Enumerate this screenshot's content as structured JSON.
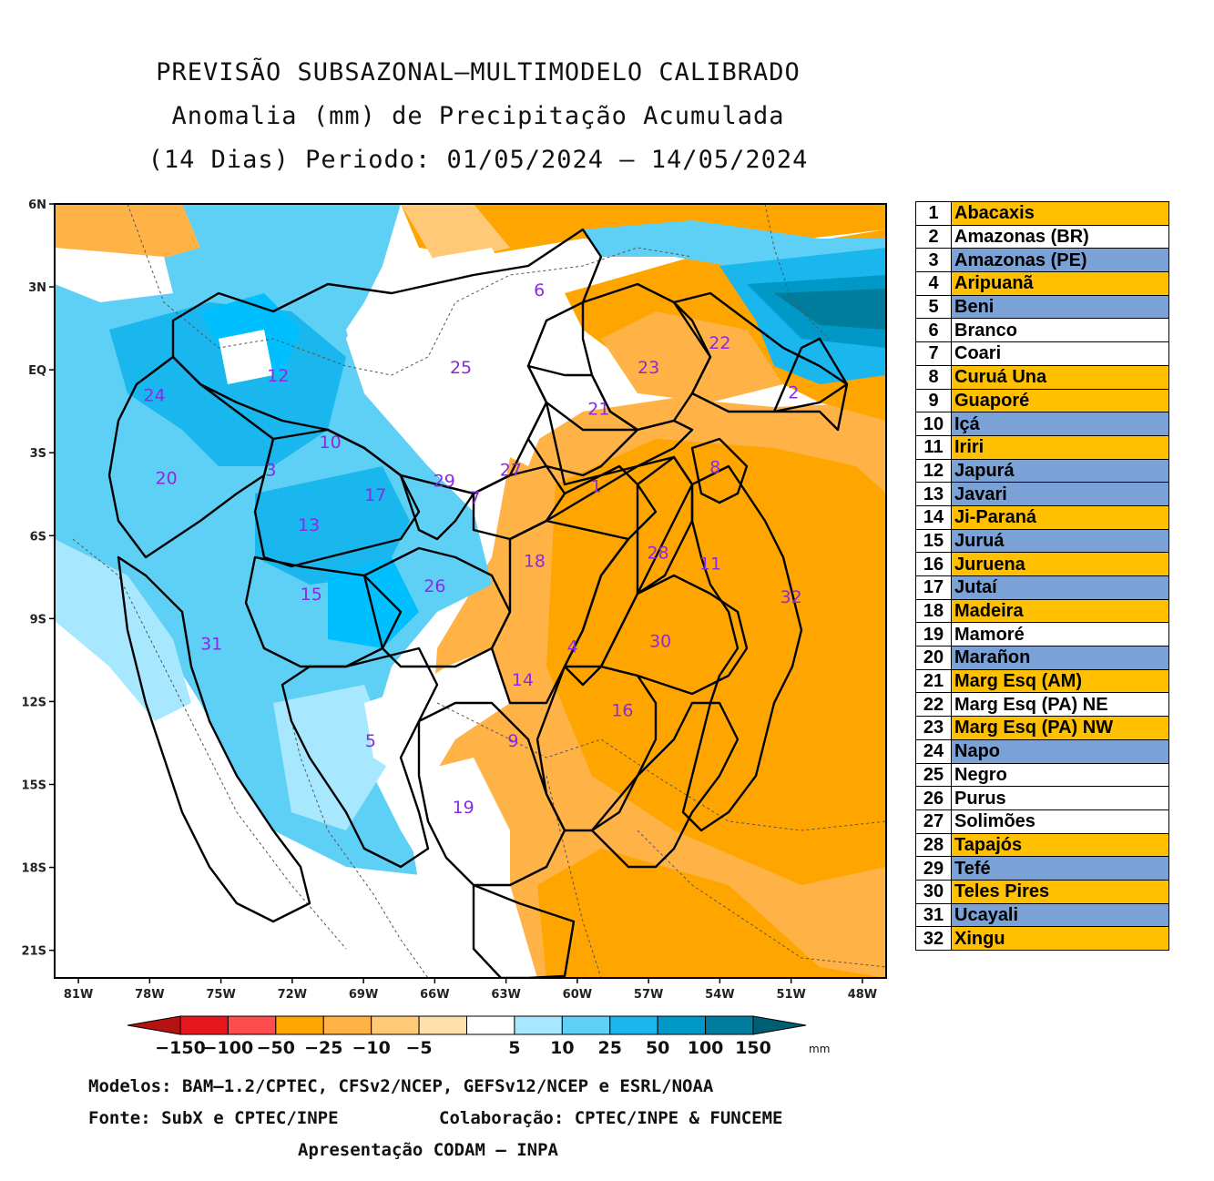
{
  "title": {
    "line1": "PREVISÃO SUBSAZONAL—MULTIMODELO CALIBRADO",
    "line2": "Anomalia (mm) de Precipitação Acumulada",
    "line3": "(14 Dias) Periodo: 01/05/2024 — 14/05/2024"
  },
  "map": {
    "lat_ticks": [
      "6N",
      "3N",
      "EQ",
      "3S",
      "6S",
      "9S",
      "12S",
      "15S",
      "18S",
      "21S"
    ],
    "lon_ticks": [
      "81W",
      "78W",
      "75W",
      "72W",
      "69W",
      "66W",
      "63W",
      "60W",
      "57W",
      "54W",
      "51W",
      "48W"
    ],
    "lat_range": [
      6,
      -22
    ],
    "lon_range": [
      -82,
      -47
    ],
    "basin_labels": [
      {
        "n": "1",
        "lon": -59.2,
        "lat": -4.2
      },
      {
        "n": "2",
        "lon": -50.9,
        "lat": -0.8
      },
      {
        "n": "3",
        "lon": -72.9,
        "lat": -3.6
      },
      {
        "n": "4",
        "lon": -60.2,
        "lat": -10.0
      },
      {
        "n": "5",
        "lon": -68.7,
        "lat": -13.4
      },
      {
        "n": "6",
        "lon": -61.6,
        "lat": 2.9
      },
      {
        "n": "7",
        "lon": -64.3,
        "lat": -4.6
      },
      {
        "n": "8",
        "lon": -54.2,
        "lat": -3.5
      },
      {
        "n": "9",
        "lon": -62.7,
        "lat": -13.4
      },
      {
        "n": "10",
        "lon": -70.4,
        "lat": -2.6
      },
      {
        "n": "11",
        "lon": -54.4,
        "lat": -7.0
      },
      {
        "n": "12",
        "lon": -72.6,
        "lat": -0.2
      },
      {
        "n": "13",
        "lon": -71.3,
        "lat": -5.6
      },
      {
        "n": "14",
        "lon": -62.3,
        "lat": -11.2
      },
      {
        "n": "15",
        "lon": -71.2,
        "lat": -8.1
      },
      {
        "n": "16",
        "lon": -58.1,
        "lat": -12.3
      },
      {
        "n": "17",
        "lon": -68.5,
        "lat": -4.5
      },
      {
        "n": "18",
        "lon": -61.8,
        "lat": -6.9
      },
      {
        "n": "19",
        "lon": -64.8,
        "lat": -15.8
      },
      {
        "n": "20",
        "lon": -77.3,
        "lat": -3.9
      },
      {
        "n": "21",
        "lon": -59.1,
        "lat": -1.4
      },
      {
        "n": "22",
        "lon": -54.0,
        "lat": 1.0
      },
      {
        "n": "23",
        "lon": -57.0,
        "lat": 0.1
      },
      {
        "n": "24",
        "lon": -77.8,
        "lat": -0.9
      },
      {
        "n": "25",
        "lon": -64.9,
        "lat": 0.1
      },
      {
        "n": "26",
        "lon": -66.0,
        "lat": -7.8
      },
      {
        "n": "27",
        "lon": -62.8,
        "lat": -3.6
      },
      {
        "n": "28",
        "lon": -56.6,
        "lat": -6.6
      },
      {
        "n": "29",
        "lon": -65.6,
        "lat": -4.0
      },
      {
        "n": "30",
        "lon": -56.5,
        "lat": -9.8
      },
      {
        "n": "31",
        "lon": -75.4,
        "lat": -9.9
      },
      {
        "n": "32",
        "lon": -51.0,
        "lat": -8.2
      }
    ]
  },
  "legend": {
    "rows": [
      {
        "n": "1",
        "name": "Abacaxis",
        "color": "#ffc000"
      },
      {
        "n": "2",
        "name": "Amazonas (BR)",
        "color": "#ffffff"
      },
      {
        "n": "3",
        "name": "Amazonas (PE)",
        "color": "#7aa2d6"
      },
      {
        "n": "4",
        "name": "Aripuanã",
        "color": "#ffc000"
      },
      {
        "n": "5",
        "name": "Beni",
        "color": "#7aa2d6"
      },
      {
        "n": "6",
        "name": "Branco",
        "color": "#ffffff"
      },
      {
        "n": "7",
        "name": "Coari",
        "color": "#ffffff"
      },
      {
        "n": "8",
        "name": "Curuá Una",
        "color": "#ffc000"
      },
      {
        "n": "9",
        "name": "Guaporé",
        "color": "#ffc000"
      },
      {
        "n": "10",
        "name": "Içá",
        "color": "#7aa2d6"
      },
      {
        "n": "11",
        "name": "Iriri",
        "color": "#ffc000"
      },
      {
        "n": "12",
        "name": "Japurá",
        "color": "#7aa2d6"
      },
      {
        "n": "13",
        "name": "Javari",
        "color": "#7aa2d6"
      },
      {
        "n": "14",
        "name": "Ji-Paraná",
        "color": "#ffc000"
      },
      {
        "n": "15",
        "name": "Juruá",
        "color": "#7aa2d6"
      },
      {
        "n": "16",
        "name": "Juruena",
        "color": "#ffc000"
      },
      {
        "n": "17",
        "name": "Jutaí",
        "color": "#7aa2d6"
      },
      {
        "n": "18",
        "name": "Madeira",
        "color": "#ffc000"
      },
      {
        "n": "19",
        "name": "Mamoré",
        "color": "#ffffff"
      },
      {
        "n": "20",
        "name": "Marañon",
        "color": "#7aa2d6"
      },
      {
        "n": "21",
        "name": "Marg Esq (AM)",
        "color": "#ffc000"
      },
      {
        "n": "22",
        "name": "Marg Esq (PA) NE",
        "color": "#ffffff"
      },
      {
        "n": "23",
        "name": "Marg Esq (PA) NW",
        "color": "#ffc000"
      },
      {
        "n": "24",
        "name": "Napo",
        "color": "#7aa2d6"
      },
      {
        "n": "25",
        "name": "Negro",
        "color": "#ffffff"
      },
      {
        "n": "26",
        "name": "Purus",
        "color": "#ffffff"
      },
      {
        "n": "27",
        "name": "Solimões",
        "color": "#ffffff"
      },
      {
        "n": "28",
        "name": "Tapajós",
        "color": "#ffc000"
      },
      {
        "n": "29",
        "name": "Tefé",
        "color": "#7aa2d6"
      },
      {
        "n": "30",
        "name": "Teles Pires",
        "color": "#ffc000"
      },
      {
        "n": "31",
        "name": "Ucayali",
        "color": "#7aa2d6"
      },
      {
        "n": "32",
        "name": "Xingu",
        "color": "#ffc000"
      }
    ]
  },
  "colorbar": {
    "ticks": [
      "−150",
      "−100",
      "−50",
      "−25",
      "−10",
      "−5",
      "5",
      "10",
      "25",
      "50",
      "100",
      "150"
    ],
    "unit": "mm",
    "colors": [
      "#b51212",
      "#e8161d",
      "#ff4d4d",
      "#ffa500",
      "#ffb347",
      "#ffc978",
      "#ffe0ad",
      "#ffffff",
      "#a8e8ff",
      "#5fd0f5",
      "#1ab6ee",
      "#0098c7",
      "#007c9c",
      "#005e74"
    ]
  },
  "credits": {
    "models": "Modelos: BAM—1.2/CPTEC, CFSv2/NCEP, GEFSv12/NCEP e ESRL/NOAA",
    "source": "Fonte: SubX e CPTEC/INPE",
    "collab": "Colaboração: CPTEC/INPE & FUNCEME",
    "presentation": "Apresentação CODAM — INPA"
  }
}
